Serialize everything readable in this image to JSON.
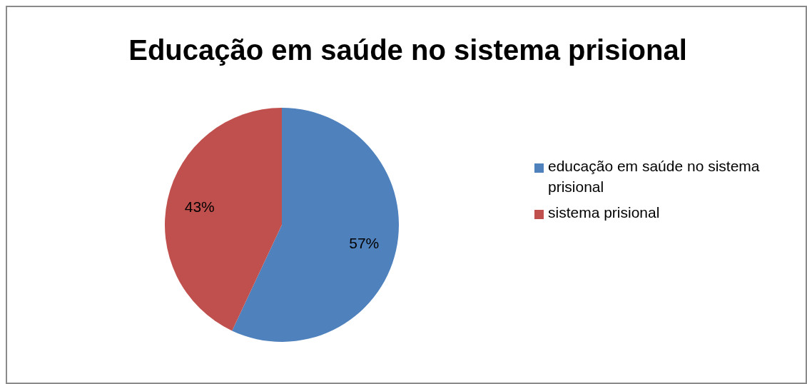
{
  "chart_data": {
    "type": "pie",
    "title": "Educação em saúde no sistema prisional",
    "categories": [
      "educação em saúde no sistema prisional",
      "sistema prisional"
    ],
    "values": [
      57,
      43
    ],
    "colors": [
      "#4f81bd",
      "#c0504d"
    ],
    "value_labels": [
      "57%",
      "43%"
    ],
    "legend": "right"
  }
}
